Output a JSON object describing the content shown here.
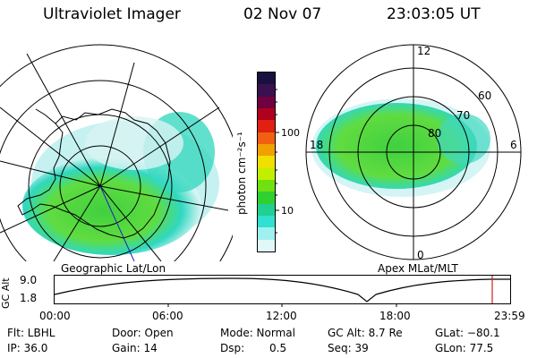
{
  "header": {
    "instrument": "Ultraviolet Imager",
    "date": "02 Nov 07",
    "time": "23:03:05 UT"
  },
  "colorbar": {
    "label": "photon cm⁻²s⁻¹",
    "ticks": [
      "100",
      "10"
    ],
    "colors": [
      "#1a1040",
      "#3a1050",
      "#700040",
      "#b00020",
      "#e02010",
      "#f06010",
      "#f0a000",
      "#f0e000",
      "#c0f000",
      "#70e010",
      "#30d030",
      "#20d090",
      "#30e0d0",
      "#a0f0f0",
      "#e0f8f8"
    ]
  },
  "left_map": {
    "caption": "Geographic Lat/Lon"
  },
  "right_map": {
    "caption": "Apex MLat/MLT",
    "mlt_labels": {
      "top": "12",
      "left": "18",
      "right": "6",
      "bottom": "0"
    },
    "lat_labels": [
      "60",
      "70",
      "80"
    ]
  },
  "timeline": {
    "ylabel": "GC Alt",
    "yticks": [
      "9.0",
      "1.8"
    ],
    "xticks": [
      "00:00",
      "06:00",
      "12:00",
      "18:00",
      "23:59"
    ]
  },
  "status": {
    "filter": "Flt: LBHL",
    "ip": "IP: 36.0",
    "door": "Door: Open",
    "gain": "Gain: 14",
    "mode": "Mode: Normal",
    "dsp_label": "Dsp:",
    "dsp_value": "0.5",
    "gc_alt": "GC Alt: 8.7 Re",
    "seq": "Seq: 39",
    "glat": "GLat: −80.1",
    "glon": "GLon: 77.5"
  }
}
